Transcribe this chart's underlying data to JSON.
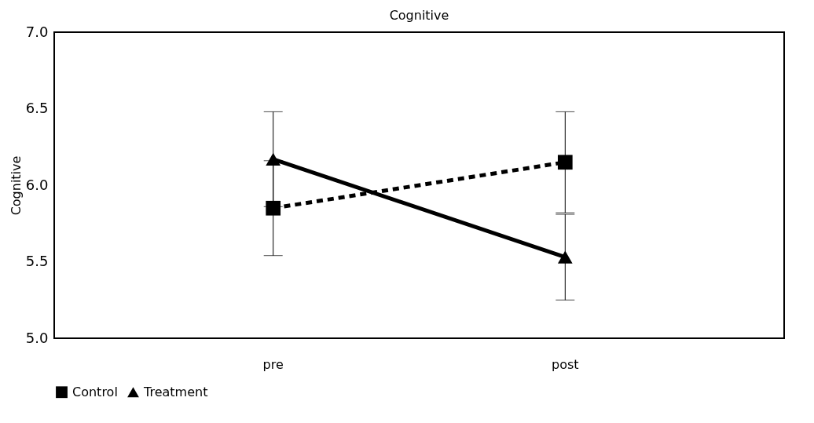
{
  "chart_data": {
    "type": "line",
    "title": "Cognitive",
    "ylabel": "Cognitive",
    "categories": [
      "pre",
      "post"
    ],
    "series": [
      {
        "name": "Control",
        "color": "#000000",
        "values": [
          5.85,
          6.15
        ],
        "errors": [
          0.31,
          0.33
        ],
        "marker": "square",
        "line_style": "dashed"
      },
      {
        "name": "Treatment",
        "color": "#000000",
        "values": [
          6.17,
          5.53
        ],
        "errors": [
          0.31,
          0.28
        ],
        "marker": "triangle",
        "line_style": "solid"
      }
    ],
    "ylim": [
      5.0,
      7.0
    ],
    "yticks": [
      {
        "value": 5,
        "label": "5.0"
      },
      5.5,
      {
        "value": 6,
        "label": "6.0"
      },
      6.5,
      {
        "value": 7,
        "label": "7.0"
      }
    ],
    "grid": false,
    "legend": "bottom"
  }
}
